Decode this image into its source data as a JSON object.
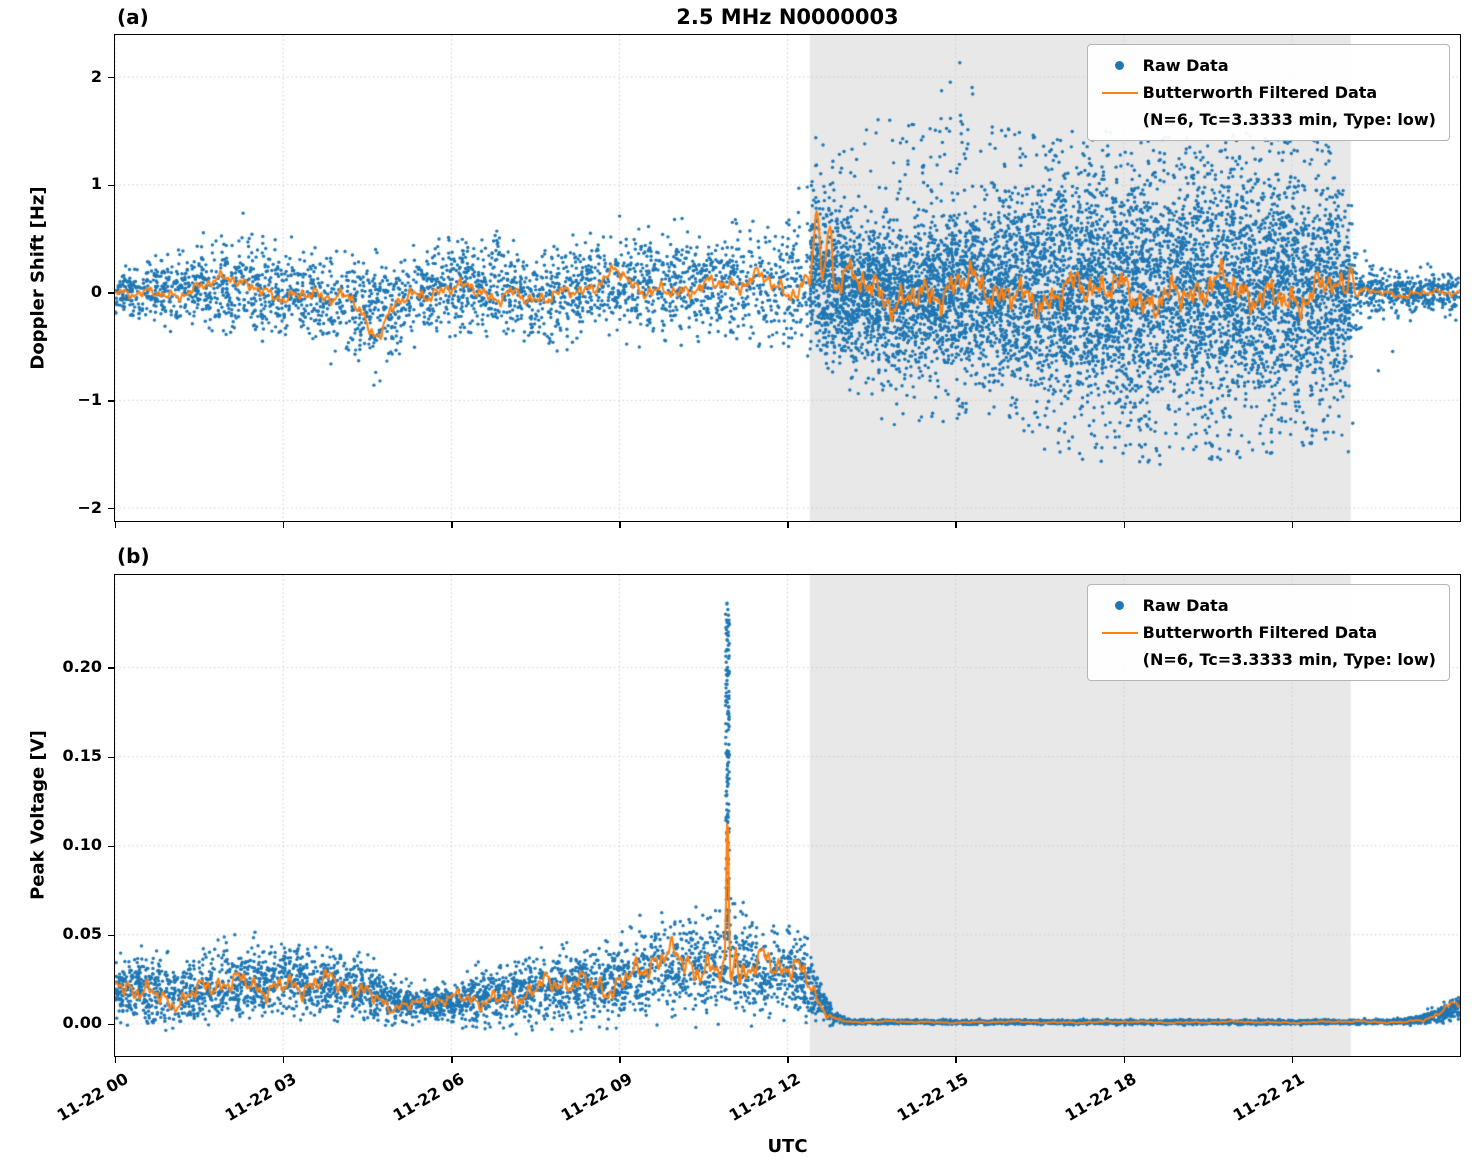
{
  "title": "2.5 MHz N0000003",
  "xlabel": "UTC",
  "legend": {
    "raw_label": "Raw Data",
    "filtered_label": "Butterworth Filtered Data",
    "filtered_sublabel": "(N=6, Tc=3.3333 min, Type: low)"
  },
  "colors": {
    "raw": "#1f77b4",
    "filtered": "#ff7f0e",
    "shade": "#e8e8e8",
    "grid": "#cccccc"
  },
  "chart_data": [
    {
      "type": "scatter",
      "panel_tag": "(a)",
      "ylabel": "Doppler Shift [Hz]",
      "series": [
        "Raw Data",
        "Butterworth Filtered Data (N=6, Tc=3.3333 min, Type: low)"
      ],
      "x_hours_range": [
        0,
        24
      ],
      "x_tick_hours": [
        0,
        3,
        6,
        9,
        12,
        15,
        18,
        21
      ],
      "x_tick_labels": [
        "11-22 00",
        "11-22 03",
        "11-22 06",
        "11-22 09",
        "11-22 12",
        "11-22 15",
        "11-22 18",
        "11-22 21"
      ],
      "show_x_tick_labels": false,
      "ylim": [
        -2.12,
        2.39
      ],
      "y_ticks": [
        2,
        1,
        0,
        -1,
        -2
      ],
      "y_tick_labels": [
        "2",
        "1",
        "0",
        "−1",
        "−2"
      ],
      "shaded_hours": [
        12.4,
        22.05
      ],
      "grid": true,
      "legend_position": "upper right",
      "two_sided": true,
      "points": {
        "base": 5200,
        "shaded_extra": 5600
      },
      "raw_envelope": [
        [
          0,
          0,
          0.13,
          0.35,
          -0.35,
          0.02
        ],
        [
          0.5,
          0.02,
          0.16,
          0.4,
          -0.4,
          0.02
        ],
        [
          1,
          0,
          0.2,
          0.5,
          -0.45,
          0.025
        ],
        [
          1.5,
          0.05,
          0.22,
          0.5,
          -0.4,
          0.025
        ],
        [
          2,
          0.08,
          0.26,
          0.95,
          -0.45,
          0.03
        ],
        [
          2.5,
          0.05,
          0.3,
          0.7,
          -0.5,
          0.03
        ],
        [
          3,
          0,
          0.26,
          0.6,
          -0.5,
          0.025
        ],
        [
          3.5,
          -0.05,
          0.26,
          0.5,
          -0.6,
          0.025
        ],
        [
          4,
          -0.1,
          0.3,
          0.45,
          -0.7,
          0.03
        ],
        [
          4.7,
          -0.18,
          0.34,
          0.4,
          -0.95,
          0.04
        ],
        [
          5.2,
          -0.05,
          0.3,
          0.5,
          -0.7,
          0.03
        ],
        [
          5.7,
          0.05,
          0.3,
          0.6,
          -0.5,
          0.03
        ],
        [
          6.2,
          0.02,
          0.3,
          0.65,
          -0.55,
          0.03
        ],
        [
          6.8,
          0.05,
          0.3,
          0.6,
          -0.5,
          0.03
        ],
        [
          7.3,
          -0.02,
          0.29,
          0.55,
          -0.6,
          0.03
        ],
        [
          7.8,
          -0.05,
          0.3,
          0.5,
          -0.65,
          0.03
        ],
        [
          8.3,
          0.02,
          0.3,
          0.6,
          -0.55,
          0.03
        ],
        [
          8.8,
          0.08,
          0.32,
          0.7,
          -0.5,
          0.035
        ],
        [
          9.3,
          0.1,
          0.33,
          0.75,
          -0.5,
          0.04
        ],
        [
          9.8,
          0.05,
          0.33,
          0.7,
          -0.55,
          0.04
        ],
        [
          10.3,
          0.08,
          0.35,
          0.7,
          -0.5,
          0.04
        ],
        [
          10.8,
          0.05,
          0.35,
          0.72,
          -0.55,
          0.04
        ],
        [
          11.3,
          0.1,
          0.37,
          0.78,
          -0.5,
          0.045
        ],
        [
          11.8,
          0.1,
          0.4,
          0.8,
          -0.5,
          0.05
        ],
        [
          12.2,
          0.15,
          0.45,
          1.0,
          -0.45,
          0.06
        ],
        [
          12.5,
          0.2,
          0.55,
          1.45,
          -0.5,
          0.08
        ],
        [
          12.8,
          0.1,
          0.5,
          1.3,
          -0.7,
          0.09
        ],
        [
          13.2,
          0,
          0.42,
          1.35,
          -1.0,
          0.1
        ],
        [
          13.6,
          0,
          0.45,
          1.7,
          -1.15,
          0.11
        ],
        [
          14,
          0,
          0.46,
          1.65,
          -1.3,
          0.11
        ],
        [
          14.5,
          0,
          0.5,
          1.5,
          -1.2,
          0.11
        ],
        [
          15,
          0.05,
          0.5,
          2.25,
          -1.2,
          0.12
        ],
        [
          15.5,
          0,
          0.55,
          1.8,
          -1.1,
          0.12
        ],
        [
          16,
          0,
          0.6,
          1.5,
          -1.3,
          0.13
        ],
        [
          16.5,
          0,
          0.65,
          1.45,
          -1.5,
          0.14
        ],
        [
          17,
          0,
          0.7,
          1.5,
          -1.55,
          0.15
        ],
        [
          18,
          0,
          0.73,
          1.5,
          -1.6,
          0.15
        ],
        [
          19,
          0,
          0.73,
          1.45,
          -1.6,
          0.15
        ],
        [
          20,
          0,
          0.71,
          1.5,
          -1.55,
          0.15
        ],
        [
          21,
          0,
          0.7,
          1.45,
          -1.5,
          0.15
        ],
        [
          21.8,
          0,
          0.66,
          1.4,
          -1.4,
          0.13
        ],
        [
          22.1,
          0,
          0.35,
          0.9,
          -1.6,
          0.08
        ],
        [
          22.4,
          0,
          0.16,
          0.45,
          -1.0,
          0.04
        ],
        [
          23,
          0,
          0.13,
          0.3,
          -0.4,
          0.02
        ],
        [
          23.5,
          0,
          0.13,
          0.4,
          -0.5,
          0.02
        ],
        [
          24,
          0,
          0.16,
          0.5,
          -0.6,
          0.03
        ]
      ],
      "filtered_base_scale": 0.5,
      "filtered_amp": [
        [
          0,
          0.05
        ],
        [
          1,
          0.06
        ],
        [
          3,
          0.07
        ],
        [
          4.5,
          0.08
        ],
        [
          8,
          0.07
        ],
        [
          10,
          0.08
        ],
        [
          12,
          0.1
        ],
        [
          12.4,
          0.12
        ],
        [
          12.8,
          0.17
        ],
        [
          13.2,
          0.17
        ],
        [
          21.5,
          0.17
        ],
        [
          22,
          0.12
        ],
        [
          22.3,
          0.04
        ],
        [
          24,
          0.035
        ]
      ],
      "filtered_bumps": [
        [
          2.0,
          0.1,
          0.25
        ],
        [
          4.6,
          -0.3,
          0.28
        ],
        [
          6.8,
          -0.1,
          0.2
        ],
        [
          9.0,
          0.13,
          0.25
        ],
        [
          11.5,
          0.1,
          0.3
        ],
        [
          12.52,
          0.62,
          0.07
        ],
        [
          12.75,
          0.45,
          0.06
        ],
        [
          13.05,
          0.28,
          0.07
        ],
        [
          22.05,
          0.3,
          0.04
        ]
      ],
      "filtered_noise": [
        [
          0.45,
          0.45
        ],
        [
          1.1,
          0.4
        ],
        [
          2.3,
          0.35
        ],
        [
          4.7,
          0.3
        ],
        [
          8.9,
          0.3
        ],
        [
          14.5,
          0.2
        ]
      ]
    },
    {
      "type": "scatter",
      "panel_tag": "(b)",
      "ylabel": "Peak Voltage [V]",
      "series": [
        "Raw Data",
        "Butterworth Filtered Data (N=6, Tc=3.3333 min, Type: low)"
      ],
      "x_hours_range": [
        0,
        24
      ],
      "x_tick_hours": [
        0,
        3,
        6,
        9,
        12,
        15,
        18,
        21
      ],
      "x_tick_labels": [
        "11-22 00",
        "11-22 03",
        "11-22 06",
        "11-22 09",
        "11-22 12",
        "11-22 15",
        "11-22 18",
        "11-22 21"
      ],
      "show_x_tick_labels": true,
      "ylim": [
        -0.018,
        0.252
      ],
      "y_ticks": [
        0.2,
        0.15,
        0.1,
        0.05,
        0.0
      ],
      "y_tick_labels": [
        "0.20",
        "0.15",
        "0.10",
        "0.05",
        "0.00"
      ],
      "shaded_hours": [
        12.4,
        22.05
      ],
      "grid": true,
      "legend_position": "upper right",
      "two_sided": false,
      "points": {
        "base": 6500,
        "shaded_extra": 0
      },
      "raw_envelope": [
        [
          0,
          0.018,
          0.012,
          0.045,
          0.04
        ],
        [
          0.5,
          0.02,
          0.013,
          0.05,
          0.04
        ],
        [
          1,
          0.015,
          0.011,
          0.04,
          0.03
        ],
        [
          1.5,
          0.018,
          0.012,
          0.045,
          0.04
        ],
        [
          2,
          0.02,
          0.013,
          0.05,
          0.05
        ],
        [
          2.5,
          0.022,
          0.013,
          0.052,
          0.05
        ],
        [
          3,
          0.024,
          0.014,
          0.05,
          0.05
        ],
        [
          3.5,
          0.022,
          0.013,
          0.046,
          0.04
        ],
        [
          4,
          0.02,
          0.012,
          0.042,
          0.04
        ],
        [
          4.5,
          0.017,
          0.011,
          0.04,
          0.03
        ],
        [
          5,
          0.012,
          0.008,
          0.03,
          0.02
        ],
        [
          5.5,
          0.011,
          0.007,
          0.028,
          0.02
        ],
        [
          6,
          0.012,
          0.008,
          0.03,
          0.02
        ],
        [
          6.5,
          0.014,
          0.01,
          0.034,
          0.025
        ],
        [
          7,
          0.017,
          0.012,
          0.04,
          0.03
        ],
        [
          7.5,
          0.019,
          0.013,
          0.044,
          0.03
        ],
        [
          8,
          0.02,
          0.013,
          0.046,
          0.035
        ],
        [
          8.5,
          0.022,
          0.014,
          0.05,
          0.04
        ],
        [
          9,
          0.025,
          0.015,
          0.055,
          0.06
        ],
        [
          9.5,
          0.028,
          0.016,
          0.06,
          0.06
        ],
        [
          10,
          0.03,
          0.017,
          0.066,
          0.07
        ],
        [
          10.5,
          0.031,
          0.018,
          0.07,
          0.07
        ],
        [
          11,
          0.033,
          0.019,
          0.08,
          0.08
        ],
        [
          11.5,
          0.029,
          0.016,
          0.06,
          0.06
        ],
        [
          12,
          0.028,
          0.016,
          0.056,
          0.05
        ],
        [
          12.3,
          0.025,
          0.015,
          0.05,
          0.04
        ],
        [
          12.6,
          0.012,
          0.008,
          0.03,
          0.02
        ],
        [
          12.8,
          0.004,
          0.003,
          0.01,
          0.01
        ],
        [
          13.1,
          0.0012,
          0.001,
          0.004,
          0
        ],
        [
          15,
          0.001,
          0.0009,
          0.003,
          0
        ],
        [
          18,
          0.001,
          0.0009,
          0.003,
          0
        ],
        [
          21,
          0.001,
          0.0009,
          0.003,
          0
        ],
        [
          23,
          0.0012,
          0.001,
          0.004,
          0.01
        ],
        [
          23.4,
          0.003,
          0.002,
          0.009,
          0.02
        ],
        [
          23.7,
          0.006,
          0.0035,
          0.013,
          0.03
        ],
        [
          24,
          0.009,
          0.005,
          0.018,
          0.03
        ]
      ],
      "spike": {
        "t": 10.93,
        "width": 0.07,
        "ymin": 0.045,
        "ymax": 0.238,
        "n": 160
      },
      "filtered_base_scale": 1.0,
      "filtered_amp_scale": 0.55,
      "filtered_bumps": [
        [
          9.6,
          0.005,
          0.5
        ],
        [
          10.93,
          0.09,
          0.03
        ],
        [
          11.08,
          0.025,
          0.035
        ],
        [
          11.6,
          0.006,
          0.15
        ],
        [
          23.9,
          0.002,
          0.2
        ]
      ],
      "filtered_noise": [
        [
          0.5,
          0.5
        ],
        [
          1.3,
          0.4
        ],
        [
          3.1,
          0.35
        ],
        [
          6.3,
          0.3
        ],
        [
          11,
          0.25
        ]
      ],
      "line_min": -0.0005
    }
  ]
}
